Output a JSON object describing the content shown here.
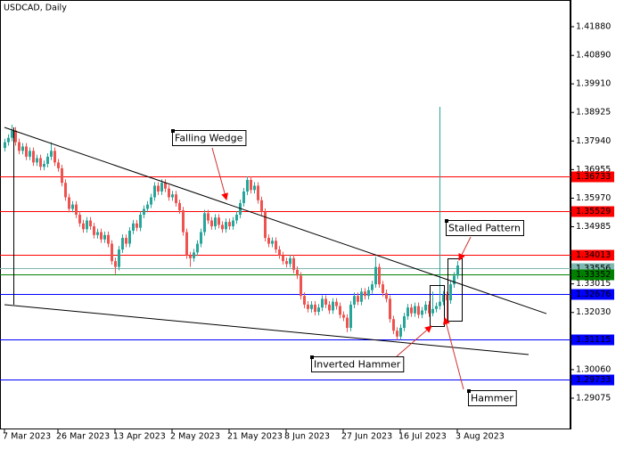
{
  "chart_data": {
    "type": "candlestick",
    "title": "USDCAD, Daily",
    "up_color": "#26a69a",
    "down_color": "#ef5350",
    "categories": [
      "7 Mar 2023",
      null,
      null,
      null,
      null,
      null,
      null,
      null,
      null,
      null,
      null,
      null,
      null,
      null,
      null,
      "26 Mar 2023",
      null,
      null,
      null,
      null,
      null,
      null,
      null,
      null,
      null,
      null,
      null,
      null,
      null,
      null,
      null,
      "13 Apr 2023",
      null,
      null,
      null,
      null,
      null,
      null,
      null,
      null,
      null,
      null,
      null,
      null,
      null,
      null,
      null,
      "2 May 2023",
      null,
      null,
      null,
      null,
      null,
      null,
      null,
      null,
      null,
      null,
      null,
      null,
      null,
      null,
      null,
      "21 May 2023",
      null,
      null,
      null,
      null,
      null,
      null,
      null,
      null,
      null,
      null,
      null,
      null,
      null,
      null,
      null,
      "8 Jun 2023",
      null,
      null,
      null,
      null,
      null,
      null,
      null,
      null,
      null,
      null,
      null,
      null,
      null,
      null,
      null,
      "27 Jun 2023",
      null,
      null,
      null,
      null,
      null,
      null,
      null,
      null,
      null,
      null,
      null,
      null,
      null,
      null,
      null,
      "16 Jul 2023",
      null,
      null,
      null,
      null,
      null,
      null,
      null,
      null,
      null,
      null,
      null,
      null,
      null,
      null,
      null,
      "3 Aug 2023"
    ],
    "ohlc": [
      [
        1.377,
        1.3802,
        1.3758,
        1.379
      ],
      [
        1.379,
        1.3817,
        1.3778,
        1.3805
      ],
      [
        1.3805,
        1.385,
        1.3793,
        1.383
      ],
      [
        1.383,
        1.3842,
        1.3778,
        1.379
      ],
      [
        1.379,
        1.3802,
        1.3748,
        1.376
      ],
      [
        1.376,
        1.3787,
        1.3748,
        1.3775
      ],
      [
        1.3775,
        1.3787,
        1.3728,
        1.374
      ],
      [
        1.374,
        1.3772,
        1.3728,
        1.376
      ],
      [
        1.376,
        1.3772,
        1.3708,
        1.372
      ],
      [
        1.372,
        1.3747,
        1.3708,
        1.3735
      ],
      [
        1.3735,
        1.3747,
        1.3693,
        1.3705
      ],
      [
        1.3705,
        1.3727,
        1.3693,
        1.3715
      ],
      [
        1.3715,
        1.3752,
        1.3703,
        1.374
      ],
      [
        1.374,
        1.379,
        1.3728,
        1.376
      ],
      [
        1.376,
        1.3772,
        1.3708,
        1.372
      ],
      [
        1.372,
        1.3732,
        1.3688,
        1.37
      ],
      [
        1.37,
        1.3712,
        1.3638,
        1.365
      ],
      [
        1.365,
        1.3662,
        1.3588,
        1.36
      ],
      [
        1.36,
        1.3612,
        1.3548,
        1.356
      ],
      [
        1.356,
        1.3587,
        1.3548,
        1.3575
      ],
      [
        1.3575,
        1.3587,
        1.3528,
        1.354
      ],
      [
        1.354,
        1.3552,
        1.3498,
        1.351
      ],
      [
        1.351,
        1.3522,
        1.3478,
        1.349
      ],
      [
        1.349,
        1.3532,
        1.3478,
        1.352
      ],
      [
        1.352,
        1.3532,
        1.3488,
        1.35
      ],
      [
        1.35,
        1.3512,
        1.3458,
        1.347
      ],
      [
        1.347,
        1.3492,
        1.3458,
        1.348
      ],
      [
        1.348,
        1.3492,
        1.3443,
        1.3455
      ],
      [
        1.3455,
        1.3482,
        1.3443,
        1.347
      ],
      [
        1.347,
        1.3482,
        1.3428,
        1.344
      ],
      [
        1.344,
        1.3452,
        1.3368,
        1.338
      ],
      [
        1.338,
        1.3392,
        1.3335,
        1.336
      ],
      [
        1.336,
        1.3432,
        1.3348,
        1.342
      ],
      [
        1.342,
        1.3472,
        1.3408,
        1.346
      ],
      [
        1.346,
        1.3472,
        1.3428,
        1.344
      ],
      [
        1.344,
        1.3497,
        1.3428,
        1.3485
      ],
      [
        1.3485,
        1.3522,
        1.3473,
        1.351
      ],
      [
        1.351,
        1.3522,
        1.3483,
        1.3495
      ],
      [
        1.3495,
        1.3552,
        1.3483,
        1.354
      ],
      [
        1.354,
        1.3572,
        1.3528,
        1.356
      ],
      [
        1.356,
        1.3587,
        1.3548,
        1.3575
      ],
      [
        1.3575,
        1.3612,
        1.3563,
        1.36
      ],
      [
        1.36,
        1.3652,
        1.3588,
        1.364
      ],
      [
        1.364,
        1.3652,
        1.3608,
        1.362
      ],
      [
        1.362,
        1.3662,
        1.3608,
        1.365
      ],
      [
        1.365,
        1.3662,
        1.3618,
        1.363
      ],
      [
        1.363,
        1.3642,
        1.3588,
        1.36
      ],
      [
        1.36,
        1.3622,
        1.3588,
        1.361
      ],
      [
        1.361,
        1.3622,
        1.3568,
        1.358
      ],
      [
        1.358,
        1.3592,
        1.3543,
        1.3555
      ],
      [
        1.3555,
        1.3567,
        1.3468,
        1.348
      ],
      [
        1.348,
        1.3492,
        1.3388,
        1.34
      ],
      [
        1.34,
        1.3412,
        1.336,
        1.339
      ],
      [
        1.339,
        1.3422,
        1.3378,
        1.341
      ],
      [
        1.341,
        1.3452,
        1.3398,
        1.344
      ],
      [
        1.344,
        1.3492,
        1.3428,
        1.348
      ],
      [
        1.348,
        1.3557,
        1.3468,
        1.3545
      ],
      [
        1.3545,
        1.3557,
        1.3508,
        1.352
      ],
      [
        1.352,
        1.3532,
        1.3488,
        1.35
      ],
      [
        1.35,
        1.3542,
        1.3488,
        1.353
      ],
      [
        1.353,
        1.3542,
        1.3493,
        1.3505
      ],
      [
        1.3505,
        1.3517,
        1.3478,
        1.349
      ],
      [
        1.349,
        1.3527,
        1.3478,
        1.3515
      ],
      [
        1.3515,
        1.3527,
        1.3488,
        1.35
      ],
      [
        1.35,
        1.3532,
        1.3488,
        1.352
      ],
      [
        1.352,
        1.3552,
        1.3508,
        1.354
      ],
      [
        1.354,
        1.3592,
        1.3528,
        1.358
      ],
      [
        1.358,
        1.3632,
        1.3568,
        1.362
      ],
      [
        1.362,
        1.3672,
        1.3608,
        1.366
      ],
      [
        1.366,
        1.3672,
        1.3613,
        1.3625
      ],
      [
        1.3625,
        1.3652,
        1.3613,
        1.364
      ],
      [
        1.364,
        1.3652,
        1.3578,
        1.359
      ],
      [
        1.359,
        1.3602,
        1.3538,
        1.355
      ],
      [
        1.355,
        1.3562,
        1.3448,
        1.346
      ],
      [
        1.346,
        1.3472,
        1.3428,
        1.344
      ],
      [
        1.344,
        1.3462,
        1.3428,
        1.345
      ],
      [
        1.345,
        1.3462,
        1.3408,
        1.342
      ],
      [
        1.342,
        1.3432,
        1.3388,
        1.34
      ],
      [
        1.34,
        1.3412,
        1.3368,
        1.338
      ],
      [
        1.338,
        1.3392,
        1.3358,
        1.337
      ],
      [
        1.337,
        1.3402,
        1.3358,
        1.339
      ],
      [
        1.339,
        1.3402,
        1.3338,
        1.335
      ],
      [
        1.335,
        1.3362,
        1.3318,
        1.333
      ],
      [
        1.333,
        1.3342,
        1.3248,
        1.326
      ],
      [
        1.326,
        1.3272,
        1.3218,
        1.323
      ],
      [
        1.323,
        1.3242,
        1.3203,
        1.3215
      ],
      [
        1.3215,
        1.3242,
        1.3203,
        1.323
      ],
      [
        1.323,
        1.3242,
        1.3193,
        1.3205
      ],
      [
        1.3205,
        1.3232,
        1.3193,
        1.322
      ],
      [
        1.322,
        1.3262,
        1.3208,
        1.325
      ],
      [
        1.325,
        1.3262,
        1.3218,
        1.323
      ],
      [
        1.323,
        1.3242,
        1.3198,
        1.321
      ],
      [
        1.321,
        1.3252,
        1.3198,
        1.324
      ],
      [
        1.324,
        1.3252,
        1.3213,
        1.3225
      ],
      [
        1.3225,
        1.3237,
        1.3183,
        1.3195
      ],
      [
        1.3195,
        1.3207,
        1.3173,
        1.3185
      ],
      [
        1.3185,
        1.3197,
        1.3135,
        1.315
      ],
      [
        1.315,
        1.3242,
        1.3138,
        1.323
      ],
      [
        1.323,
        1.3272,
        1.3218,
        1.326
      ],
      [
        1.326,
        1.3272,
        1.3228,
        1.324
      ],
      [
        1.324,
        1.3287,
        1.3228,
        1.3275
      ],
      [
        1.3275,
        1.3287,
        1.3248,
        1.326
      ],
      [
        1.326,
        1.3292,
        1.3248,
        1.328
      ],
      [
        1.328,
        1.3312,
        1.3268,
        1.33
      ],
      [
        1.33,
        1.3395,
        1.3288,
        1.336
      ],
      [
        1.336,
        1.3372,
        1.3288,
        1.33
      ],
      [
        1.33,
        1.3312,
        1.3258,
        1.327
      ],
      [
        1.327,
        1.3282,
        1.3238,
        1.325
      ],
      [
        1.325,
        1.3262,
        1.3168,
        1.318
      ],
      [
        1.318,
        1.3192,
        1.3128,
        1.314
      ],
      [
        1.314,
        1.3152,
        1.3108,
        1.312
      ],
      [
        1.312,
        1.3162,
        1.3108,
        1.315
      ],
      [
        1.315,
        1.3202,
        1.3138,
        1.319
      ],
      [
        1.319,
        1.3232,
        1.3178,
        1.322
      ],
      [
        1.322,
        1.3232,
        1.3188,
        1.32
      ],
      [
        1.32,
        1.3237,
        1.3188,
        1.3225
      ],
      [
        1.3225,
        1.3237,
        1.3183,
        1.3195
      ],
      [
        1.3195,
        1.3222,
        1.3183,
        1.321
      ],
      [
        1.321,
        1.3242,
        1.3198,
        1.323
      ],
      [
        1.323,
        1.3242,
        1.3188,
        1.32
      ],
      [
        1.32,
        1.3275,
        1.319,
        1.3215
      ],
      [
        1.3215,
        1.3237,
        1.3203,
        1.3225
      ],
      [
        1.3225,
        1.3912,
        1.3213,
        1.324
      ],
      [
        1.324,
        1.3277,
        1.3228,
        1.3265
      ],
      [
        1.3265,
        1.3275,
        1.317,
        1.3245
      ],
      [
        1.3245,
        1.3312,
        1.3233,
        1.33
      ],
      [
        1.33,
        1.3342,
        1.3288,
        1.333
      ],
      [
        1.333,
        1.338,
        1.3318,
        1.3365
      ]
    ],
    "ylim": [
      1.2803,
      1.4277
    ],
    "yticks": [
      {
        "value": 1.4188,
        "label": "1.41880"
      },
      {
        "value": 1.4089,
        "label": "1.40890"
      },
      {
        "value": 1.3991,
        "label": "1.39910"
      },
      1.38925,
      {
        "value": 1.3794,
        "label": "1.37940"
      },
      1.36955,
      {
        "value": 1.3597,
        "label": "1.35970"
      },
      1.34985,
      1.33015,
      {
        "value": 1.3203,
        "label": "1.32030"
      },
      {
        "value": 1.3006,
        "label": "1.30060"
      },
      1.29075
    ],
    "levels": [
      {
        "value": 1.36733,
        "color": "#ff0000"
      },
      {
        "value": 1.35529,
        "color": "#ff0000"
      },
      {
        "value": 1.34013,
        "color": "#ff0000"
      },
      {
        "value": 1.33556,
        "color": "#7fb8b0"
      },
      {
        "value": 1.33352,
        "color": "#008000"
      },
      {
        "value": 1.32676,
        "color": "#0000ff"
      },
      {
        "value": 1.31115,
        "color": "#0000ff"
      },
      {
        "value": 1.29733,
        "color": "#0000ff"
      }
    ],
    "trendlines": [
      {
        "x": [
          0,
          152
        ],
        "y": [
          1.3841,
          1.3199
        ]
      },
      {
        "x": [
          0,
          147
        ],
        "y": [
          1.323,
          1.3058
        ]
      }
    ],
    "annotations": [
      "Falling Wedge",
      "Stalled Pattern",
      "Inverted Hammer",
      "Hammer"
    ]
  }
}
